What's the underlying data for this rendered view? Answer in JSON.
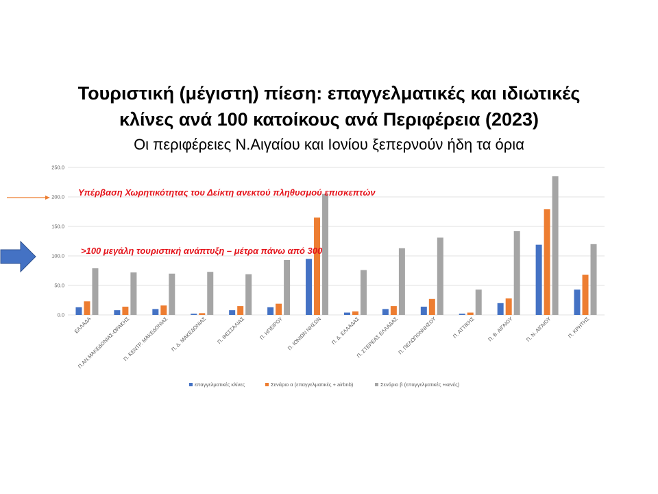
{
  "title_line1": "Τουριστική (μέγιστη) πίεση: επαγγελματικές και ιδιωτικές",
  "title_line2": "κλίνες ανά 100 κατοίκους ανά Περιφέρεια (2023)",
  "subtitle": "Οι περιφέρειες Ν.Αιγαίου και Ιονίου ξεπερνούν ήδη τα όρια",
  "annotations": {
    "capacity": "Υπέρβαση Χωρητικότητας του Δείκτη ανεκτού πληθυσμού επισκεπτών",
    "development": ">100 μεγάλη τουριστική ανάπτυξη – μέτρα πάνω από 300"
  },
  "colors": {
    "arrow_thin": "#ed7d31",
    "arrow_big": "#4472c4",
    "annotation_text": "#e4141b"
  },
  "chart_data": {
    "type": "bar",
    "categories": [
      "ΕΛΛΑΔΑ",
      "Π.ΑΝ.ΜΑΚΕΔΟΝΙΑΣ-ΘΡΑΚΗΣ",
      "Π. ΚΕΝΤΡ. ΜΑΚΕΔΟΝΙΑΣ",
      "Π. Δ. ΜΑΚΕΔΟΝΙΑΣ",
      "Π. ΘΕΣΣΑΛΙΑΣ",
      "Π. ΗΠΕΙΡΟΥ",
      "Π. ΙΟΝΙΩΝ ΝΗΣΩΝ",
      "Π. Δ. ΕΛΛΑΔΑΣ",
      "Π. ΣΤΕΡΕΑΣ ΕΛΛΑΔΑΣ",
      "Π. ΠΕΛΟΠΟΝΝΗΣΟΥ",
      "Π. ΑΤΤΙΚΗΣ",
      "Π. Β. ΑΙΓΑΙΟΥ",
      "Π. Ν. ΑΙΓΑΙΟΥ",
      "Π. ΚΡΗΤΗΣ"
    ],
    "series": [
      {
        "name": "επαγγελματικές κλίνες",
        "color": "#4472c4",
        "values": [
          13,
          8,
          10,
          2,
          8,
          13,
          95,
          4,
          10,
          14,
          2,
          20,
          119,
          43
        ]
      },
      {
        "name": "Σενάριο α (επαγγελματικές + airbnb)",
        "color": "#ed7d31",
        "values": [
          23,
          14,
          16,
          3,
          15,
          19,
          165,
          6,
          15,
          27,
          4,
          28,
          179,
          68
        ]
      },
      {
        "name": "Σενάριο β (επαγγελματικές +κενές)",
        "color": "#a5a5a5",
        "values": [
          79,
          72,
          70,
          73,
          69,
          93,
          205,
          76,
          113,
          131,
          43,
          142,
          235,
          120
        ]
      }
    ],
    "ylim": [
      0,
      250
    ],
    "yticks": [
      "0.0",
      "50.0",
      "100.0",
      "150.0",
      "200.0",
      "250.0"
    ],
    "grid": true,
    "legend": "bottom"
  }
}
